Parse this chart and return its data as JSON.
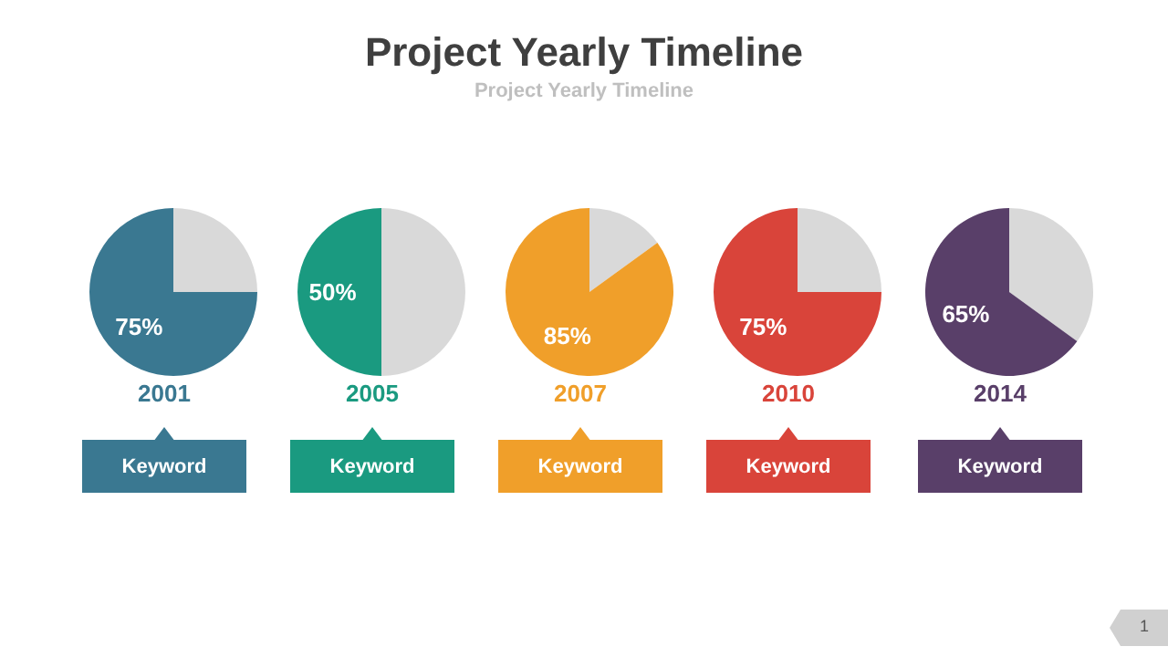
{
  "chart_data": [
    {
      "type": "other",
      "title": "Project Yearly Timeline",
      "subtitle": "Project Yearly Timeline",
      "annotations": [
        "1"
      ]
    },
    {
      "type": "pie",
      "title": "2001",
      "categories": [
        null,
        null
      ],
      "values": [
        25,
        75
      ],
      "colors": [
        "#d9d9d9",
        "#3a7891"
      ],
      "value_labels": [
        null,
        "75%"
      ],
      "annotations": [
        "Keyword"
      ]
    },
    {
      "type": "pie",
      "title": "2005",
      "categories": [
        null,
        null
      ],
      "values": [
        50,
        50
      ],
      "colors": [
        "#d9d9d9",
        "#1a9a80"
      ],
      "value_labels": [
        null,
        "50%"
      ],
      "annotations": [
        "Keyword"
      ]
    },
    {
      "type": "pie",
      "title": "2007",
      "categories": [
        null,
        null
      ],
      "values": [
        15,
        85
      ],
      "colors": [
        "#d9d9d9",
        "#f09f2a"
      ],
      "value_labels": [
        null,
        "85%"
      ],
      "annotations": [
        "Keyword"
      ]
    },
    {
      "type": "pie",
      "title": "2010",
      "categories": [
        null,
        null
      ],
      "values": [
        25,
        75
      ],
      "colors": [
        "#d9d9d9",
        "#d9443a"
      ],
      "value_labels": [
        null,
        "75%"
      ],
      "annotations": [
        "Keyword"
      ]
    },
    {
      "type": "pie",
      "title": "2014",
      "categories": [
        null,
        null
      ],
      "values": [
        35,
        65
      ],
      "colors": [
        "#d9d9d9",
        "#593f69"
      ],
      "value_labels": [
        null,
        "65%"
      ],
      "annotations": [
        "Keyword"
      ]
    }
  ]
}
